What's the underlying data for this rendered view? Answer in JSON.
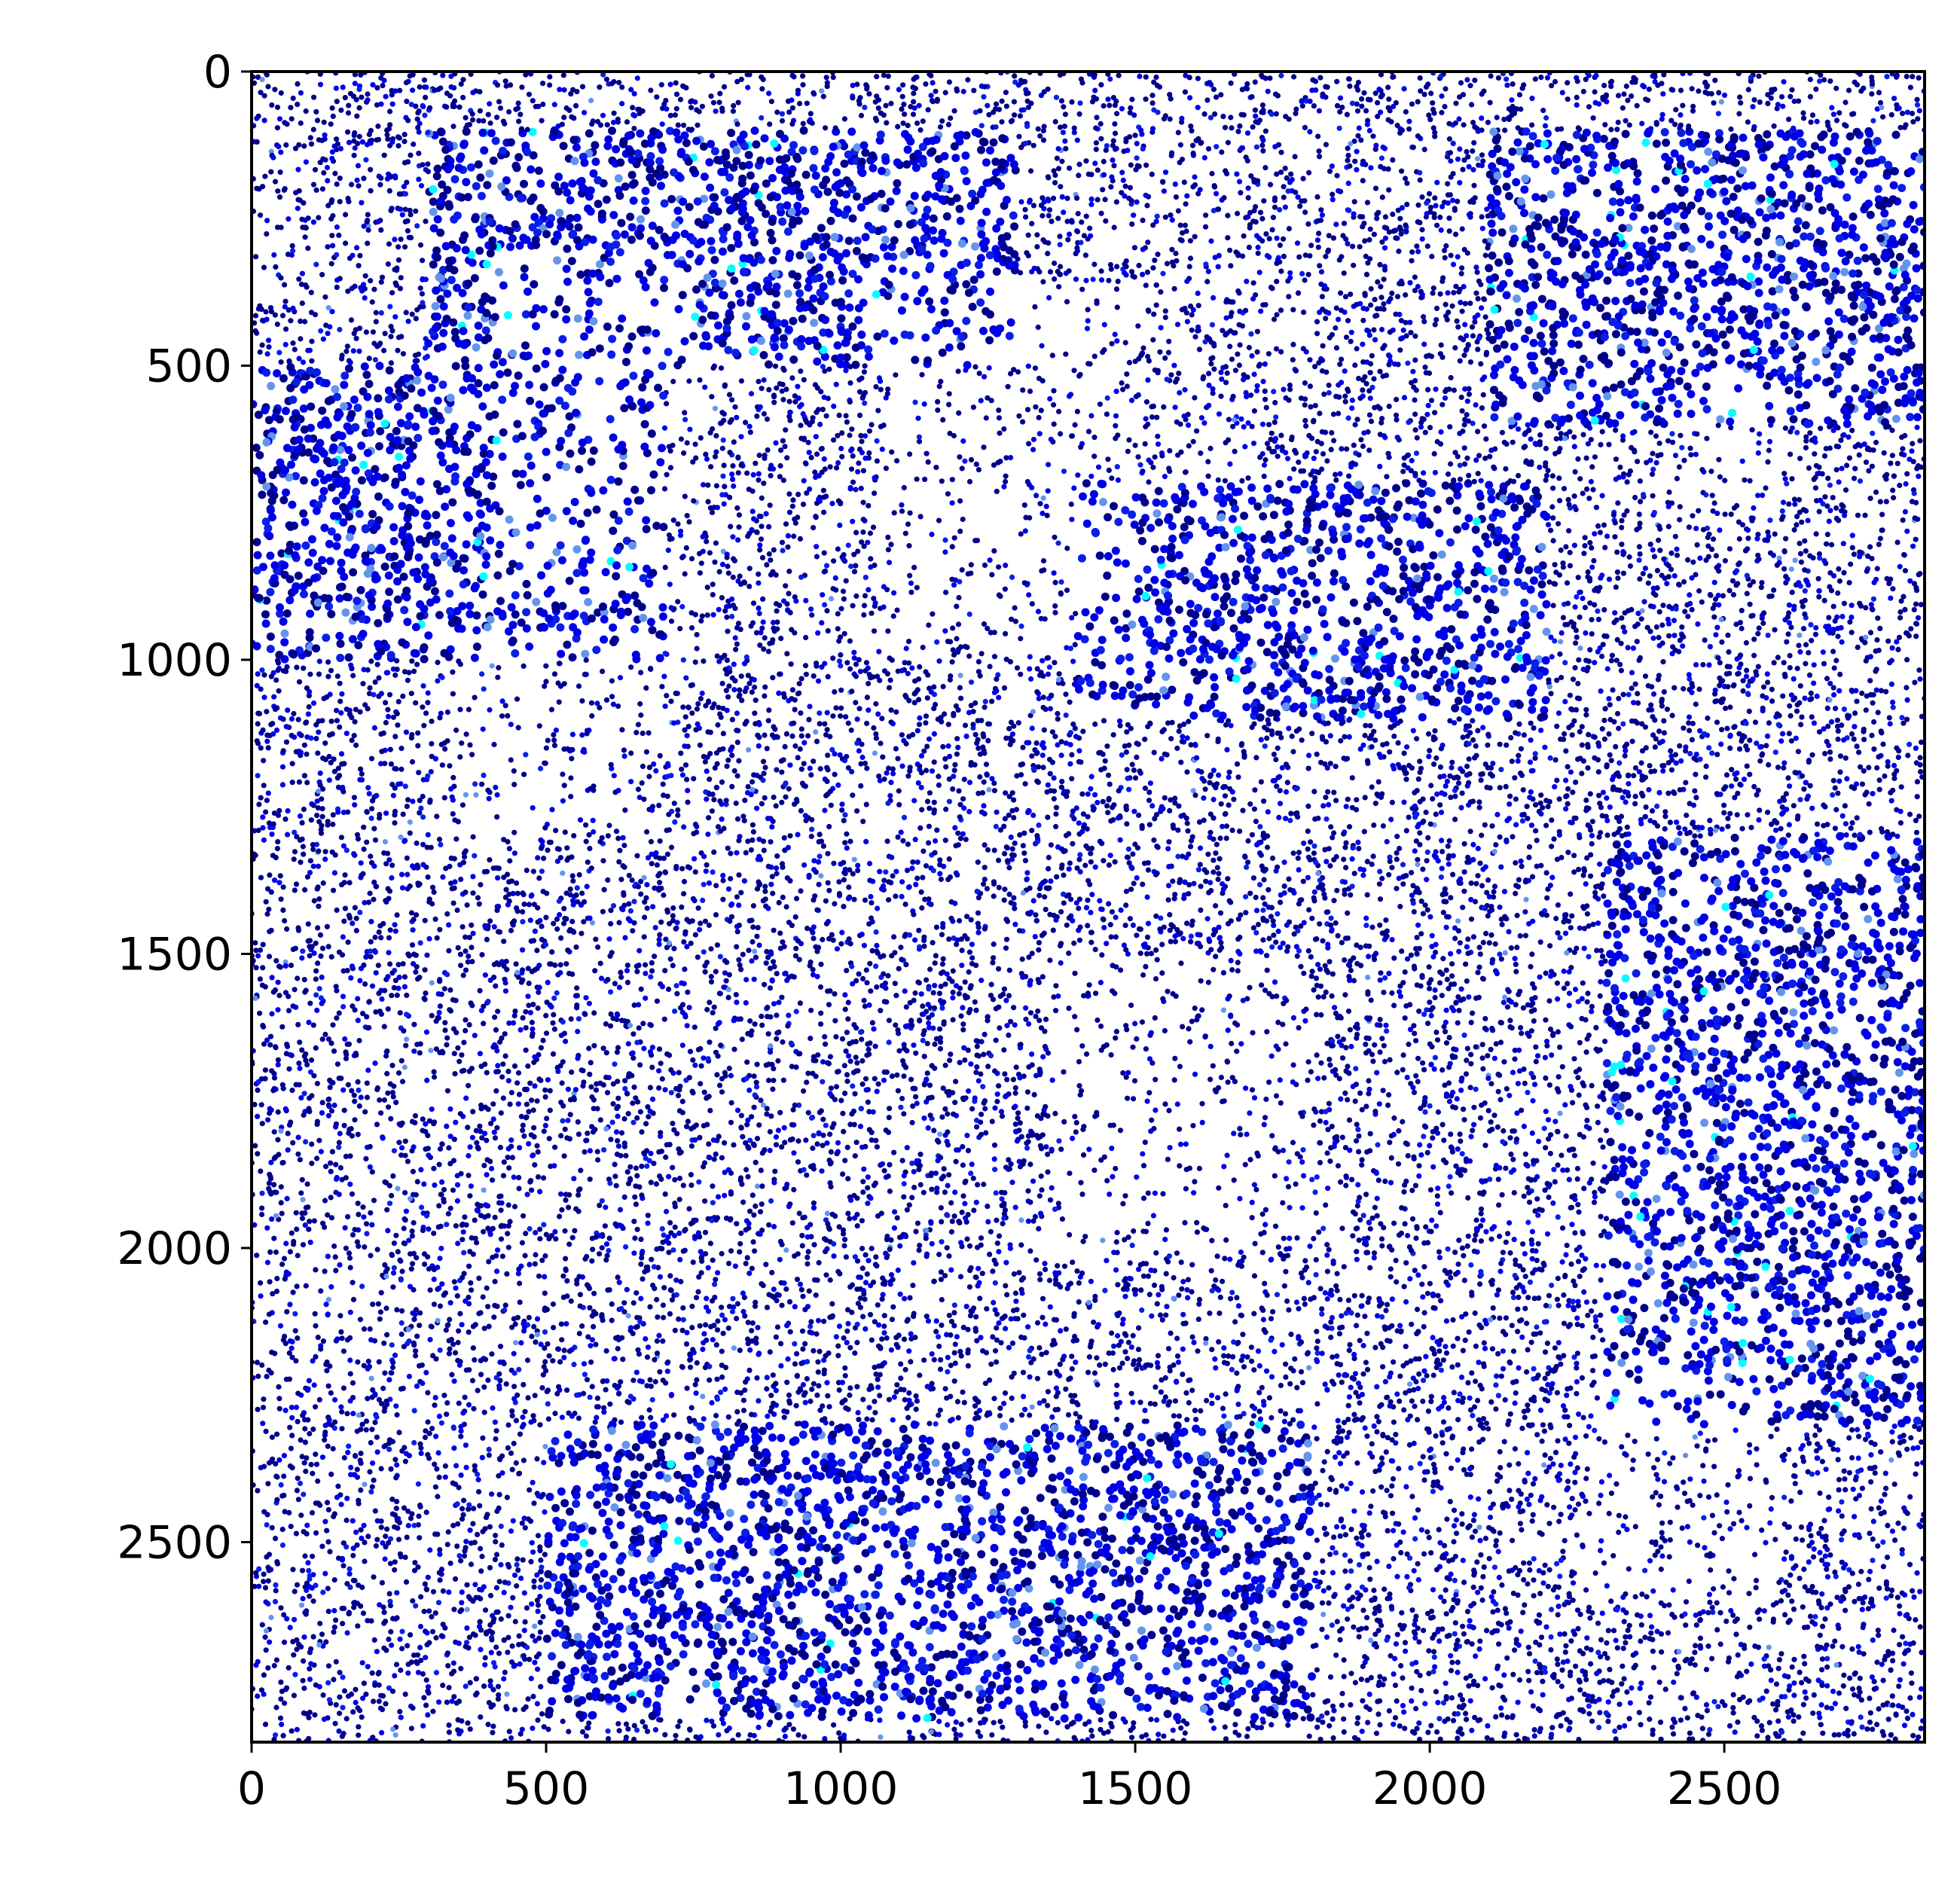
{
  "chart_data": {
    "type": "scatter",
    "description_free": true,
    "xlim": [
      0,
      2840
    ],
    "ylim": [
      2840,
      0
    ],
    "x_ticks": [
      0,
      500,
      1000,
      1500,
      2000,
      2500
    ],
    "y_ticks": [
      0,
      500,
      1000,
      1500,
      2000,
      2500
    ],
    "x_tick_labels": [
      "0",
      "500",
      "1000",
      "1500",
      "2000",
      "2500"
    ],
    "y_tick_labels": [
      "0",
      "500",
      "1000",
      "1500",
      "2000",
      "2500"
    ],
    "title": "",
    "xlabel": "",
    "ylabel": "",
    "grid": false,
    "legend": "none",
    "colors": {
      "navy": "#00008b",
      "blue": "#0000e6",
      "royal": "#0a1ee8",
      "cornflower": "#6495ed",
      "cyan": "#00ffff",
      "background": "#ffffff",
      "axis": "#000000"
    },
    "cell_density_regions": [
      {
        "x": [
          0,
          2840
        ],
        "y": [
          0,
          2840
        ],
        "dominant": "navy"
      },
      {
        "x": [
          300,
          1300
        ],
        "y": [
          100,
          500
        ],
        "dominant": "blue"
      },
      {
        "x": [
          2100,
          2840
        ],
        "y": [
          100,
          600
        ],
        "dominant": "blue"
      },
      {
        "x": [
          0,
          700
        ],
        "y": [
          500,
          1000
        ],
        "dominant": "blue"
      },
      {
        "x": [
          1400,
          2200
        ],
        "y": [
          700,
          1100
        ],
        "dominant": "blue"
      },
      {
        "x": [
          2300,
          2840
        ],
        "y": [
          1300,
          2300
        ],
        "dominant": "blue"
      },
      {
        "x": [
          0,
          500
        ],
        "y": [
          1500,
          2800
        ],
        "dominant": "navy"
      },
      {
        "x": [
          500,
          1800
        ],
        "y": [
          2300,
          2800
        ],
        "dominant": "blue"
      }
    ],
    "sparse_regions": [
      {
        "x": [
          400,
          760
        ],
        "y": [
          300,
          900
        ]
      },
      {
        "x": [
          1050,
          1500
        ],
        "y": [
          350,
          1000
        ]
      },
      {
        "x": [
          300,
          700
        ],
        "y": [
          950,
          1300
        ]
      },
      {
        "x": [
          1350,
          1800
        ],
        "y": [
          1500,
          2000
        ]
      },
      {
        "x": [
          2250,
          2600
        ],
        "y": [
          2200,
          2600
        ]
      },
      {
        "x": [
          2450,
          2600
        ],
        "y": [
          520,
          720
        ]
      }
    ]
  }
}
